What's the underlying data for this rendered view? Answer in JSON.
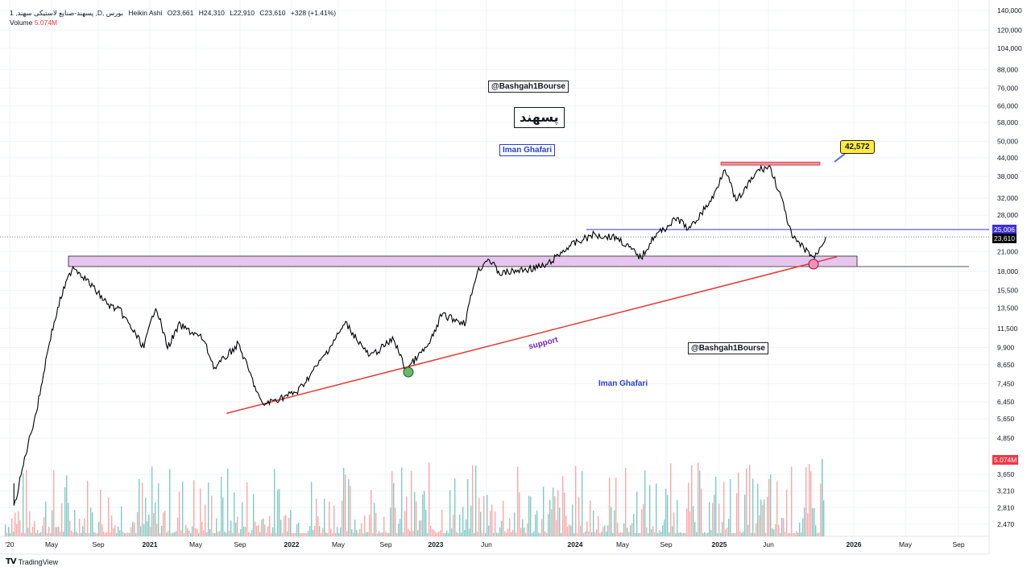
{
  "legend": {
    "symbol": "1 ,پسهند-صنایع لاستیکی سهند ,D, بورس",
    "chart_style": "Heikin Ashi",
    "open": "O23,661",
    "high": "H24,310",
    "low": "L22,910",
    "close": "C23,610",
    "change": "+328 (+1.41%)",
    "volume_label": "Volume",
    "volume_value": "5.074M"
  },
  "annotations": {
    "watermark_top": "@Bashgah1Bourse",
    "ticker_fa": "پسهند",
    "author_top": "Iman Ghafari",
    "watermark_mid": "@Bashgah1Bourse",
    "author_mid": "Iman Ghafari",
    "support_label": "support",
    "target_callout": "42,572"
  },
  "badges": {
    "resistance_price": "25,006",
    "last_price": "23,610",
    "volume": "5.074M"
  },
  "colors": {
    "resistance_line": "#3f2fe0",
    "support_line": "#e53935",
    "zone_fill": "#e6c6ee",
    "top_zone": "#f28b9b",
    "callout": "#ffeb3b",
    "volume_up": "#80cbc4",
    "volume_down": "#f7a9a8",
    "price": "#000000"
  },
  "footer": {
    "brand": "TradingView",
    "logo_text": "TV"
  },
  "chart_data": {
    "type": "line",
    "chart_style": "Heikin Ashi",
    "y_scale": "log",
    "y_ticks": [
      "140,000",
      "120,000",
      "104,000",
      "88,000",
      "76,000",
      "66,000",
      "58,000",
      "50,000",
      "44,000",
      "38,000",
      "32,000",
      "28,000",
      "21,000",
      "18,000",
      "15,500",
      "13,500",
      "11,500",
      "9,900",
      "8,650",
      "7,450",
      "6,450",
      "5,650",
      "4,850",
      "3,650",
      "3,210",
      "2,810",
      "2,470"
    ],
    "x_ticks": [
      "'20",
      "May",
      "Sep",
      "2021",
      "May",
      "Sep",
      "2022",
      "May",
      "Sep",
      "2023",
      "Jun",
      "2024",
      "May",
      "Sep",
      "2025",
      "Jun",
      "2026",
      "May",
      "Sep"
    ],
    "grid": true,
    "series": [
      {
        "x": [
          "2020-01",
          "2020-01",
          "2020-02",
          "2020-03",
          "2020-04",
          "2020-05",
          "2020-06",
          "2020-07",
          "2020-09",
          "2020-10",
          "2020-12",
          "2021-01",
          "2021-02",
          "2021-03",
          "2021-05",
          "2021-06",
          "2021-08",
          "2021-10",
          "2022-01",
          "2022-03",
          "2022-05",
          "2022-07",
          "2022-09",
          "2022-10",
          "2022-12",
          "2023-01",
          "2023-03",
          "2023-04",
          "2023-05",
          "2023-06",
          "2023-08",
          "2023-10",
          "2023-12",
          "2024-02",
          "2024-04",
          "2024-06",
          "2024-07",
          "2024-09",
          "2024-10",
          "2024-12",
          "2025-01",
          "2025-02",
          "2025-04",
          "2025-05",
          "2025-06",
          "2025-07",
          "2025-09",
          "2025-10"
        ],
        "values": [
          3400,
          2800,
          4300,
          6250,
          10400,
          14800,
          18800,
          17100,
          13800,
          13200,
          9900,
          13800,
          9900,
          11800,
          10600,
          8400,
          10200,
          6300,
          7000,
          9000,
          12000,
          9200,
          10600,
          8300,
          10200,
          12800,
          12000,
          17700,
          20000,
          17700,
          18200,
          18800,
          22000,
          24000,
          23500,
          20000,
          23500,
          27300,
          25000,
          32300,
          41000,
          31000,
          40000,
          41000,
          32300,
          23500,
          20000,
          23610
        ]
      }
    ],
    "levels": {
      "resistance": 25006,
      "last": 23610,
      "zone": [
        18700,
        20300
      ],
      "top_zone": 42000,
      "target": 42572
    },
    "support_trendline": [
      [
        "2021-07",
        5900
      ],
      [
        "2025-11",
        20200
      ]
    ],
    "touch_points": [
      [
        "2022-10",
        8300
      ],
      [
        "2025-09",
        19100
      ]
    ]
  }
}
